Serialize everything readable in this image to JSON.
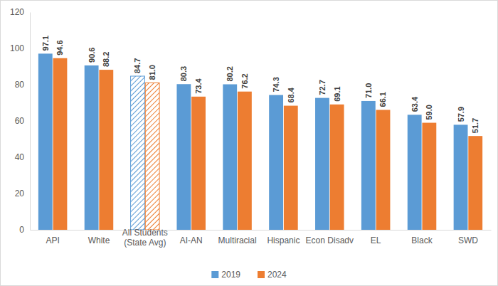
{
  "chart_data": {
    "type": "bar",
    "categories": [
      "API",
      "White",
      "All Students (State Avg)",
      "AI-AN",
      "Multiracial",
      "Hispanic",
      "Econ Disadv",
      "EL",
      "Black",
      "SWD"
    ],
    "series": [
      {
        "name": "2019",
        "color": "#5B9BD5",
        "values": [
          97.1,
          90.6,
          84.7,
          80.3,
          80.2,
          74.3,
          72.7,
          71.0,
          63.4,
          57.9
        ],
        "value_labels": [
          "97.1",
          "90.6",
          "84.7",
          "80.3",
          "80.2",
          "74.3",
          "72.7",
          "71.0",
          "63.4",
          "57.9"
        ]
      },
      {
        "name": "2024",
        "color": "#ED7D31",
        "values": [
          94.6,
          88.2,
          81.0,
          73.4,
          76.2,
          68.4,
          69.1,
          66.1,
          59.0,
          51.7
        ],
        "value_labels": [
          "94.6",
          "88.2",
          "81.0",
          "73.4",
          "76.2",
          "68.4",
          "69.1",
          "66.1",
          "59.0",
          "51.7"
        ]
      }
    ],
    "ylim": [
      0,
      120
    ],
    "yticks": [
      0,
      20,
      40,
      60,
      80,
      100,
      120
    ],
    "grid": false,
    "legend": "bottom",
    "data_labels": true
  }
}
